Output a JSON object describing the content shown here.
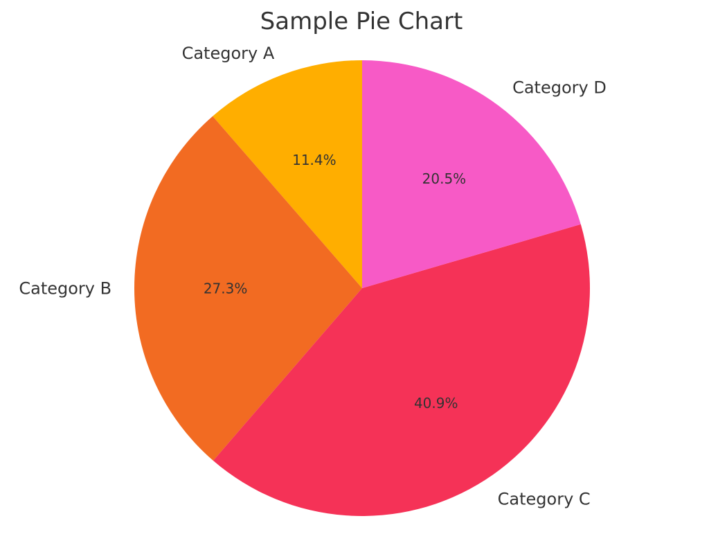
{
  "chart_data": {
    "type": "pie",
    "title": "Sample Pie Chart",
    "categories": [
      "Category A",
      "Category B",
      "Category C",
      "Category D"
    ],
    "values": [
      11.4,
      27.3,
      40.9,
      20.5
    ],
    "percent_labels": [
      "11.4%",
      "27.3%",
      "40.9%",
      "20.5%"
    ],
    "colors": [
      "#FFAE00",
      "#F26B22",
      "#F53257",
      "#F75AC6"
    ],
    "start_angle_deg": 90,
    "direction": "counterclockwise",
    "legend": "none"
  }
}
